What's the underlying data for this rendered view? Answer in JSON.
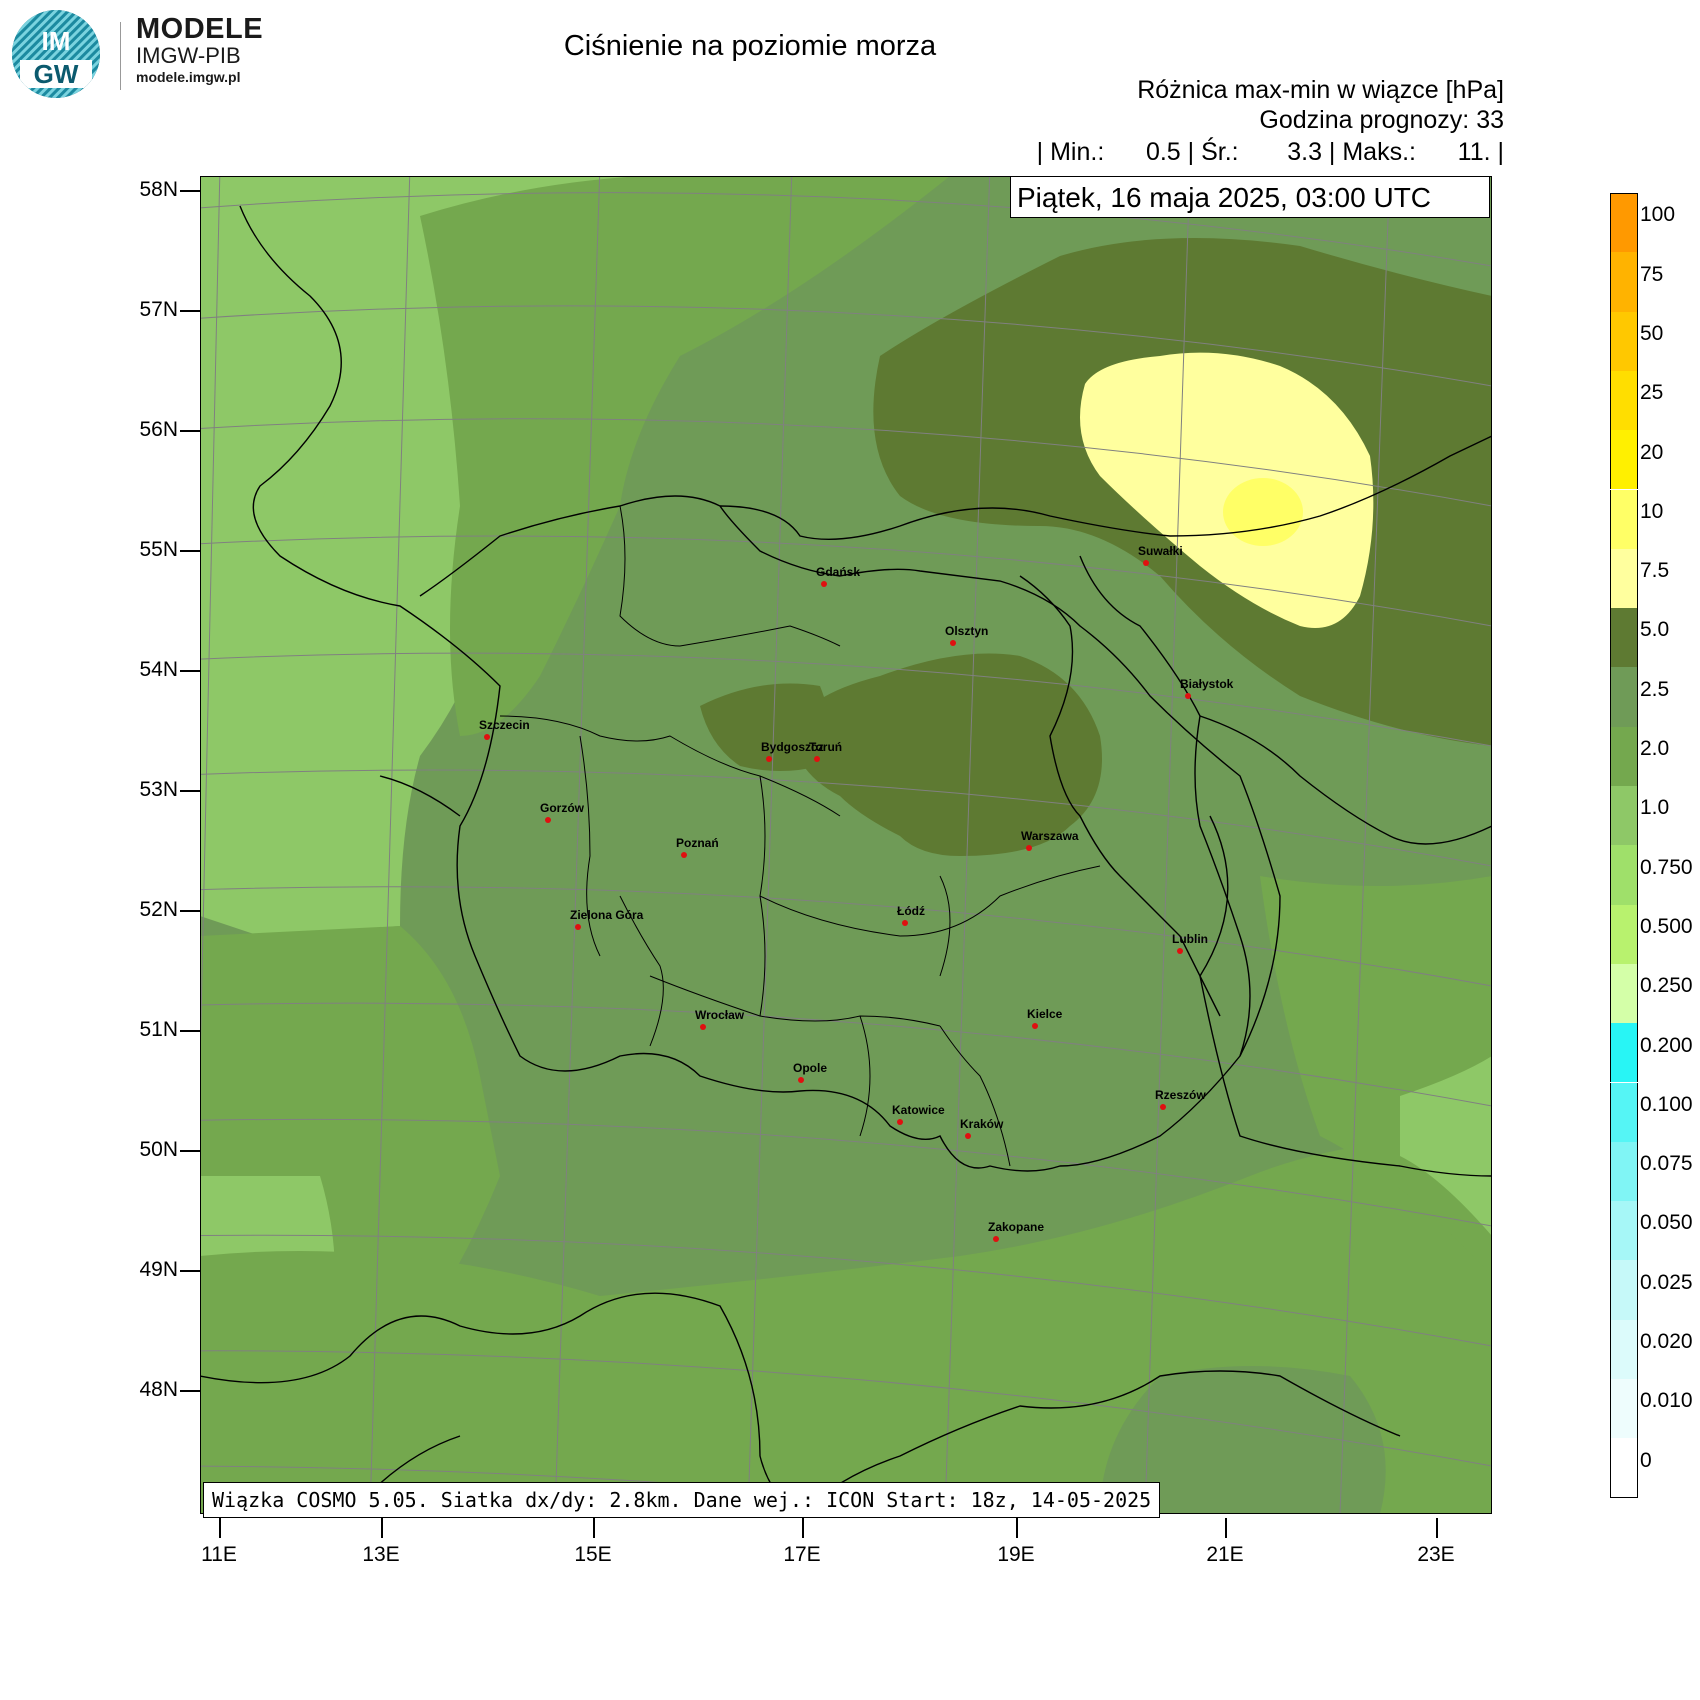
{
  "logo": {
    "mark_top": "IM",
    "mark_bottom": "GW",
    "brand": "MODELE",
    "sub": "IMGW-PIB",
    "url": "modele.imgw.pl"
  },
  "header": {
    "title": "Ciśnienie na poziomie morza",
    "subtitle": "Różnica max-min w wiązce [hPa]",
    "forecast_hour": "Godzina prognozy: 33",
    "stats": "| Min.:      0.5 | Śr.:       3.3 | Maks.:      11. |",
    "date": "Piątek, 16 maja 2025, 03:00 UTC"
  },
  "axes": {
    "lat_labels": [
      "58N",
      "57N",
      "56N",
      "55N",
      "54N",
      "53N",
      "52N",
      "51N",
      "50N",
      "49N",
      "48N"
    ],
    "lon_labels": [
      "11E",
      "13E",
      "15E",
      "17E",
      "19E",
      "21E",
      "23E"
    ]
  },
  "cities": [
    {
      "name": "Gdańsk"
    },
    {
      "name": "Suwałki"
    },
    {
      "name": "Olsztyn"
    },
    {
      "name": "Białystok"
    },
    {
      "name": "Szczecin"
    },
    {
      "name": "Bydgoszcz"
    },
    {
      "name": "Toruń"
    },
    {
      "name": "Gorzów"
    },
    {
      "name": "Poznań"
    },
    {
      "name": "Warszawa"
    },
    {
      "name": "Łódź"
    },
    {
      "name": "Zielona Góra"
    },
    {
      "name": "Lublin"
    },
    {
      "name": "Wrocław"
    },
    {
      "name": "Kielce"
    },
    {
      "name": "Opole"
    },
    {
      "name": "Rzeszów"
    },
    {
      "name": "Katowice"
    },
    {
      "name": "Kraków"
    },
    {
      "name": "Zakopane"
    }
  ],
  "info": "Wiązka COSMO 5.05. Siatka dx/dy: 2.8km. Dane wej.: ICON Start: 18z, 14-05-2025",
  "legend": {
    "labels": [
      "100",
      "75",
      "50",
      "25",
      "20",
      "10",
      "7.5",
      "5.0",
      "2.5",
      "2.0",
      "1.0",
      "0.750",
      "0.500",
      "0.250",
      "0.200",
      "0.100",
      "0.075",
      "0.050",
      "0.025",
      "0.020",
      "0.010",
      "0"
    ],
    "colors": [
      "#ff9900",
      "#ffb300",
      "#ffc800",
      "#ffde00",
      "#fff000",
      "#ffff66",
      "#ffff9e",
      "#5e7a32",
      "#6f9b57",
      "#74a84e",
      "#8ec867",
      "#9fe06a",
      "#b8f26e",
      "#d4ffa8",
      "#28f5f5",
      "#55f5f5",
      "#80f5f5",
      "#a6f7f7",
      "#c6f9f9",
      "#dcfbfb",
      "#eefdfd",
      "#ffffff"
    ]
  },
  "colors": {
    "light_green": "#8ec867",
    "mid_green": "#74a84e",
    "dark_green": "#6f9b57",
    "olive": "#5e7a32",
    "pale_yellow": "#ffff9e",
    "yellow": "#ffff66",
    "city_dot": "#e01010"
  }
}
